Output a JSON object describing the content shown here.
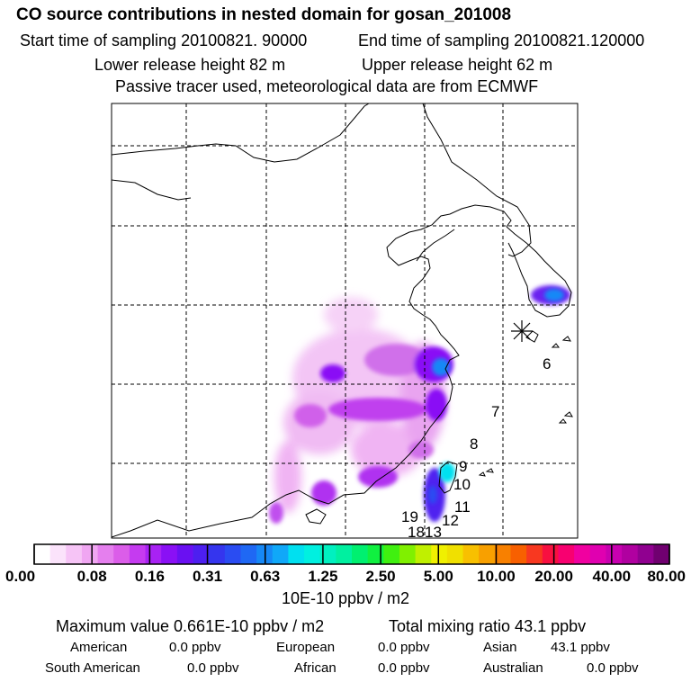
{
  "header": {
    "title": "CO  source contributions in nested domain for gosan_201008",
    "start_time": "Start time of sampling 20100821. 90000",
    "end_time": "End time of sampling 20100821.120000",
    "lower_height": "Lower release height   82 m",
    "upper_height": "Upper release height   62 m",
    "note": "Passive tracer used, meteorological data are from ECMWF"
  },
  "map_labels": [
    "6",
    "7",
    "8",
    "9",
    "10",
    "11",
    "12",
    "13",
    "18",
    "19"
  ],
  "colorbar": {
    "tick_labels": [
      "0.00",
      "0.08",
      "0.16",
      "0.31",
      "0.63",
      "1.25",
      "2.50",
      "5.00",
      "10.00",
      "20.00",
      "40.00",
      "80.00"
    ],
    "unit": "10E-10 ppbv / m2",
    "colors": [
      "#ffffff",
      "#fbe3fb",
      "#f6c4f6",
      "#f0a6f2",
      "#e57fee",
      "#db5de9",
      "#c53bf0",
      "#a822f4",
      "#8a10f5",
      "#6a10f2",
      "#4d1ff0",
      "#3535ee",
      "#2a4cf2",
      "#1f68f4",
      "#1688f6",
      "#10a8f8",
      "#00e0f0",
      "#00f0e0",
      "#00f0c0",
      "#00f0a0",
      "#00f070",
      "#10f040",
      "#40f010",
      "#80f000",
      "#c0f000",
      "#f0f000",
      "#f0e000",
      "#f8c000",
      "#f8a000",
      "#f88000",
      "#f86000",
      "#f83820",
      "#f81040",
      "#f80070",
      "#f000a0",
      "#e000b0",
      "#c800b0",
      "#b000a0",
      "#900090",
      "#700070"
    ]
  },
  "stats": {
    "maximum": "Maximum value  0.661E-10 ppbv / m2",
    "total": "Total mixing ratio      43.1 ppbv",
    "american": "American",
    "american_val": "0.0 ppbv",
    "european": "European",
    "european_val": "0.0 ppbv",
    "asian": "Asian",
    "asian_val": "43.1 ppbv",
    "south_american": "South American",
    "south_american_val": "0.0 ppbv",
    "african": "African",
    "african_val": "0.0 ppbv",
    "australian": "Australian",
    "australian_val": "0.0 ppbv"
  },
  "chart_data": {
    "type": "heatmap",
    "title": "CO  source contributions in nested domain for gosan_201008",
    "colorbar_levels": [
      0.0,
      0.08,
      0.16,
      0.31,
      0.63,
      1.25,
      2.5,
      5.0,
      10.0,
      20.0,
      40.0,
      80.0
    ],
    "colorbar_unit": "10E-10 ppbv / m2",
    "max_value": "0.661E-10 ppbv / m2",
    "total_mixing_ratio_ppbv": 43.1,
    "region_contributions_ppbv": {
      "American": 0.0,
      "European": 0.0,
      "Asian": 43.1,
      "South American": 0.0,
      "African": 0.0,
      "Australian": 0.0
    }
  }
}
